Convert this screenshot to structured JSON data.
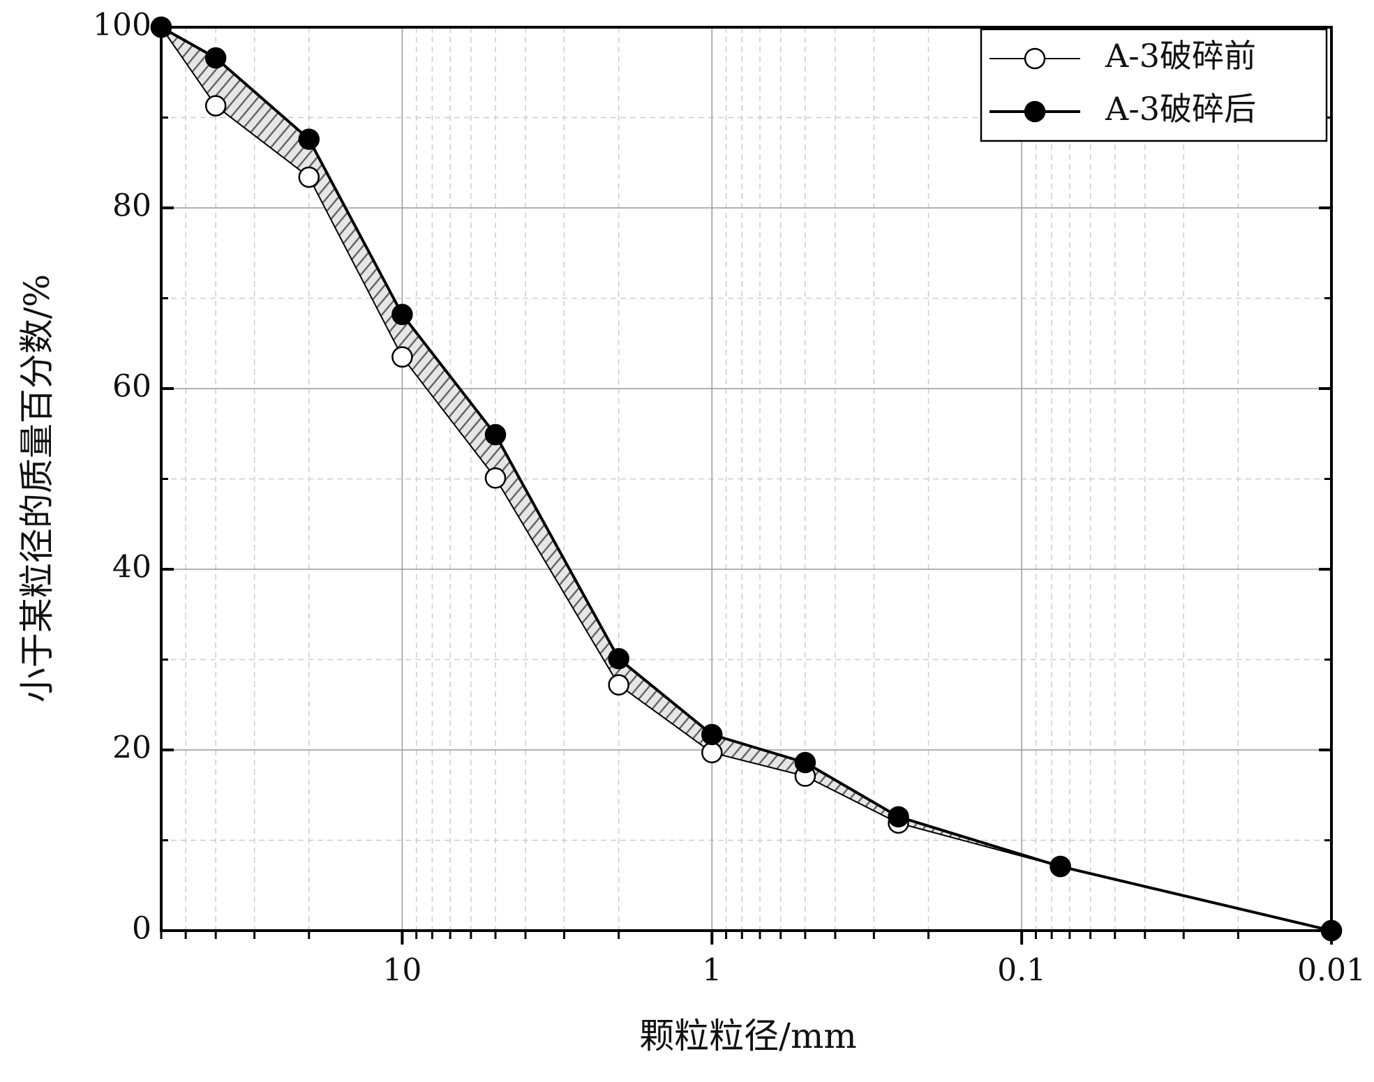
{
  "chart_data": {
    "type": "line",
    "xlabel": "颗粒粒径/mm",
    "ylabel": "小于某粒径的质量百分数/%",
    "x": [
      60,
      40,
      20,
      10,
      5,
      2,
      1,
      0.5,
      0.25,
      0.075,
      0.01
    ],
    "series": [
      {
        "name": "A-3破碎前",
        "color": "#000000",
        "marker": "open",
        "values": [
          100,
          91.3,
          83.4,
          63.5,
          50.1,
          27.2,
          19.7,
          17.1,
          11.9,
          7.1,
          0
        ]
      },
      {
        "name": "A-3破碎后",
        "color": "#000000",
        "marker": "filled",
        "values": [
          100,
          96.6,
          87.6,
          68.2,
          54.9,
          30.1,
          21.7,
          18.6,
          12.6,
          7.1,
          0
        ]
      }
    ],
    "xlim": [
      60,
      0.01
    ],
    "xscale": "log",
    "xticks": [
      10,
      1,
      0.1,
      0.01
    ],
    "ylim": [
      0,
      100
    ],
    "yticks": [
      0,
      20,
      40,
      60,
      80,
      100
    ],
    "grid": true,
    "legend": "upper right",
    "fill_between": true
  }
}
